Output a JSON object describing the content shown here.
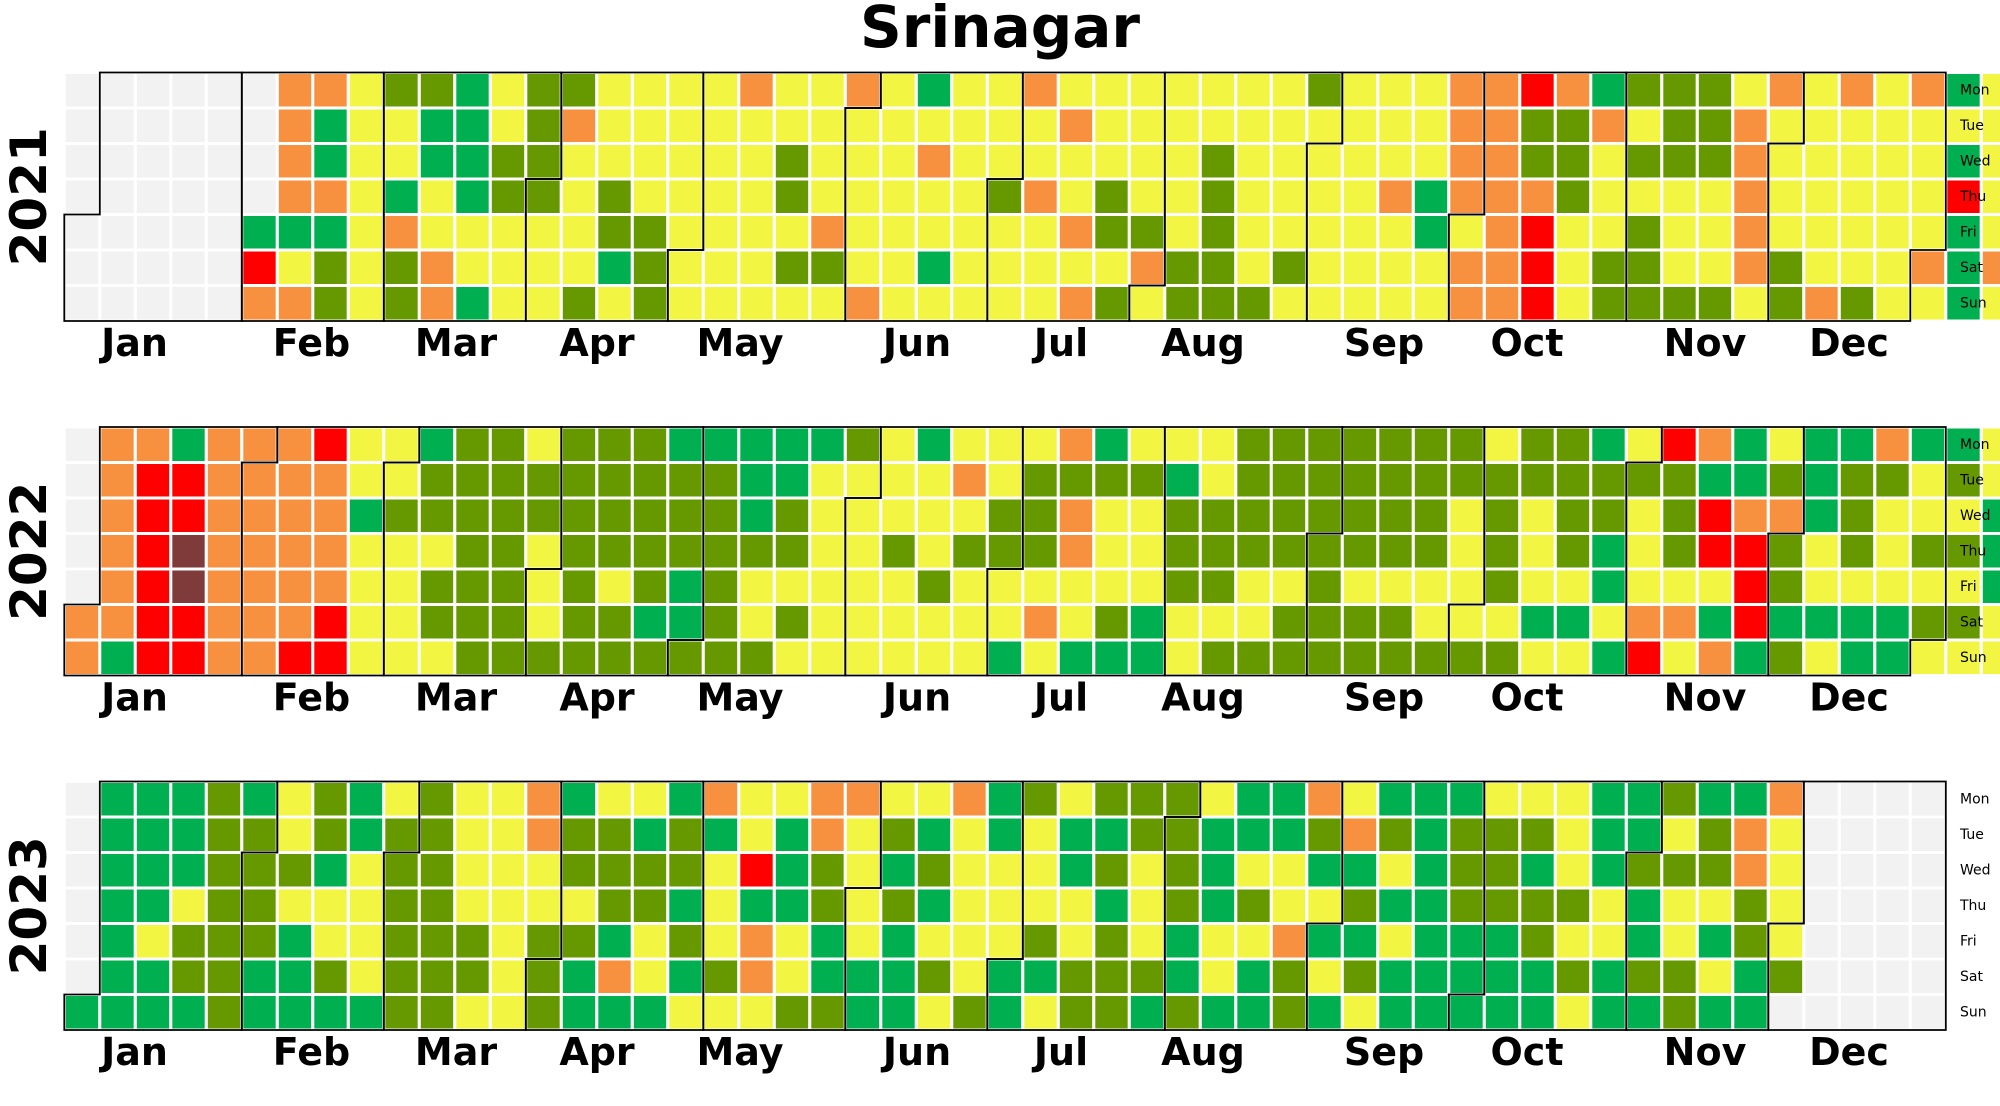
{
  "chart_data": {
    "type": "heatmap",
    "title": "Srinagar",
    "day_labels": [
      "Mon",
      "Tue",
      "Wed",
      "Thu",
      "Fri",
      "Sat",
      "Sun"
    ],
    "month_labels": [
      "Jan",
      "Feb",
      "Mar",
      "Apr",
      "May",
      "Jun",
      "Jul",
      "Aug",
      "Sep",
      "Oct",
      "Nov",
      "Dec"
    ],
    "colors": {
      "0": "#f2f2f2",
      "1": "#00b050",
      "2": "#669900",
      "3": "#f2f542",
      "4": "#f79140",
      "5": "#ff0000",
      "6": "#7f3a3a"
    },
    "years": [
      {
        "year": "2021",
        "start_weekday": 4,
        "weeks": [
          "0000000",
          "0000000",
          "0000000",
          "0000000",
          "0000000",
          "0000154",
          "4444134",
          "4114122",
          "3333333",
          "2331422",
          "2113344",
          "1111331",
          "3322333",
          "2222333",
          "2433332",
          "3332213",
          "3333222",
          "3333333",
          "3333333",
          "4333333",
          "3322323",
          "3333423",
          "4333334",
          "3333333",
          "1343313",
          "3333333",
          "3332333",
          "4334333",
          "3433434",
          "3332232",
          "3333243",
          "3333322",
          "3322222",
          "3333332",
          "3333323",
          "2333333",
          "3333333",
          "3334333",
          "3331133",
          "4444344",
          "4444444",
          "5224555",
          "4222333",
          "1433322",
          "2323222",
          "2223332",
          "2223332",
          "3444443",
          "4333322",
          "3333334",
          "4333332",
          "3333333",
          "4333343",
          "1315111",
          "3333343",
          "3331333",
          "4444333"
        ]
      },
      {
        "year": "2022",
        "start_weekday": 5,
        "weeks": [
          "0000044",
          "4444441",
          "4555555",
          "1556655",
          "4444444",
          "4444444",
          "4444445",
          "5444455",
          "3313333",
          "3323333",
          "1223223",
          "2222222",
          "2222222",
          "3223332",
          "2222222",
          "2222322",
          "2222212",
          "1222112",
          "1222222",
          "1112332",
          "1122323",
          "1333333",
          "2333333",
          "3332333",
          "1333233",
          "3432333",
          "3322331",
          "3222343",
          "4244331",
          "1233321",
          "3233311",
          "3122233",
          "3322232",
          "2222332",
          "2222322",
          "2222222",
          "2222322",
          "2222322",
          "2222332",
          "2233332",
          "3222232",
          "2233313",
          "2222313",
          "1221131",
          "3233345",
          "5222343",
          "4155314",
          "1145551",
          "3242212",
          "1113313",
          "1222311",
          "4233311",
          "1332323",
          "1232323",
          "3311133",
          "1323223"
        ]
      },
      {
        "year": "2023",
        "start_weekday": 6,
        "weeks": [
          "0000001",
          "1111111",
          "1111311",
          "1113221",
          "2222222",
          "1222211",
          "3323111",
          "2213321",
          "1133331",
          "3222222",
          "2222222",
          "3333223",
          "3333333",
          "4433222",
          "1223211",
          "3222141",
          "3122331",
          "1221213",
          "4133323",
          "3351443",
          "3111332",
          "4422112",
          "4333311",
          "3212111",
          "3121323",
          "4333332",
          "1133311",
          "2333213",
          "3113322",
          "2121222",
          "2233321",
          "2222112",
          "3111331",
          "1132311",
          "1133422",
          "4213131",
          "3412123",
          "1231311",
          "1111111",
          "1222111",
          "3222111",
          "3212211",
          "3332323",
          "1113311",
          "1121121",
          "2323322",
          "1223131",
          "1442211",
          "4333320",
          "0000000",
          "0000000",
          "0000000",
          "0000000"
        ]
      }
    ]
  }
}
